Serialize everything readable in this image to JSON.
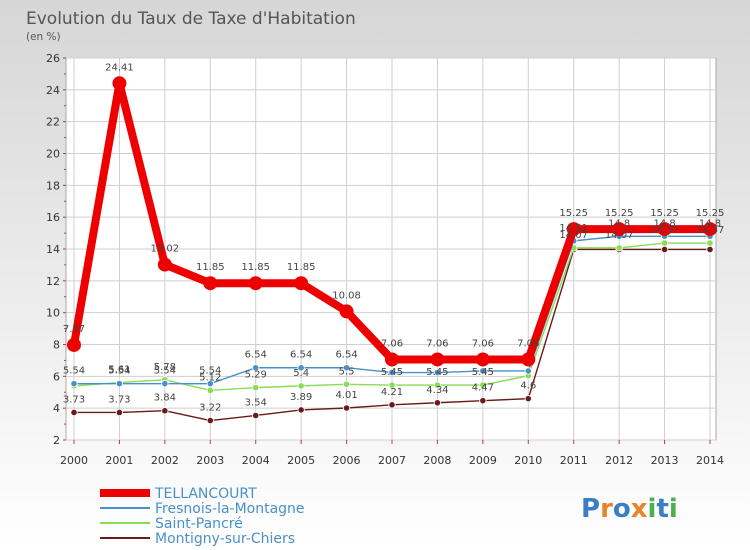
{
  "chart_data": {
    "type": "line",
    "title": "Evolution du Taux de Taxe d'Habitation",
    "subtitle": "(en %)",
    "ylim": [
      2,
      26
    ],
    "y_ticks": [
      "2",
      "4",
      "6",
      "8",
      "10",
      "12",
      "14",
      "16",
      "18",
      "20",
      "22",
      "24",
      "26"
    ],
    "categories": [
      "2000",
      "2001",
      "2002",
      "2003",
      "2004",
      "2005",
      "2006",
      "2007",
      "2008",
      "2009",
      "2010",
      "2011",
      "2012",
      "2013",
      "2014"
    ],
    "grid": true,
    "legend_position": "bottom-left",
    "series": [
      {
        "name": "TELLANCOURT",
        "color": "#ee0000",
        "values": [
          7.97,
          24.41,
          13.02,
          11.85,
          11.85,
          11.85,
          10.08,
          7.06,
          7.06,
          7.06,
          7.06,
          15.25,
          15.25,
          15.25,
          15.25
        ],
        "labels": [
          "7.97",
          "24.41",
          "13.02",
          "11.85",
          "11.85",
          "11.85",
          "10.08",
          "7.06",
          "7.06",
          "7.06",
          "7.06",
          "15.25",
          "15.25",
          "15.25",
          "15.25"
        ]
      },
      {
        "name": "Fresnois-la-Montagne",
        "color": "#4a90c8",
        "values": [
          5.54,
          5.54,
          5.54,
          5.54,
          6.54,
          6.54,
          6.54,
          6.24,
          6.24,
          6.34,
          6.34,
          14.51,
          14.8,
          14.8,
          14.8
        ],
        "labels": [
          "5.54",
          "5.54",
          "5.54",
          "5.54",
          "6.54",
          "6.54",
          "6.54",
          "",
          "",
          "",
          "",
          "14.51",
          "14.8",
          "14.8",
          "14.8"
        ]
      },
      {
        "name": "Saint-Pancré",
        "color": "#88dd55",
        "values": [
          5.4,
          5.61,
          5.78,
          5.12,
          5.29,
          5.4,
          5.5,
          5.45,
          5.45,
          5.45,
          6.04,
          14.07,
          14.07,
          14.37,
          14.37
        ],
        "labels": [
          "",
          "5.61",
          "5.78",
          "5.12",
          "5.29",
          "5.4",
          "5.5",
          "5.45",
          "5.45",
          "5.45",
          "",
          "14.07",
          "14.07",
          "14.37",
          "14.37"
        ]
      },
      {
        "name": "Montigny-sur-Chiers",
        "color": "#6b1a1a",
        "values": [
          3.73,
          3.73,
          3.84,
          3.22,
          3.54,
          3.89,
          4.01,
          4.21,
          4.34,
          4.47,
          4.6,
          13.97,
          13.97,
          13.97,
          13.97
        ],
        "labels": [
          "3.73",
          "3.73",
          "3.84",
          "3.22",
          "3.54",
          "3.89",
          "4.01",
          "4.21",
          "4.34",
          "4.47",
          "4.6",
          "",
          "",
          "",
          ""
        ]
      }
    ]
  },
  "brand": "Proxiti",
  "colors": {
    "background_top": "#dcdcdc",
    "background_bottom": "#ffffff",
    "grid": "#cfcfcf"
  }
}
